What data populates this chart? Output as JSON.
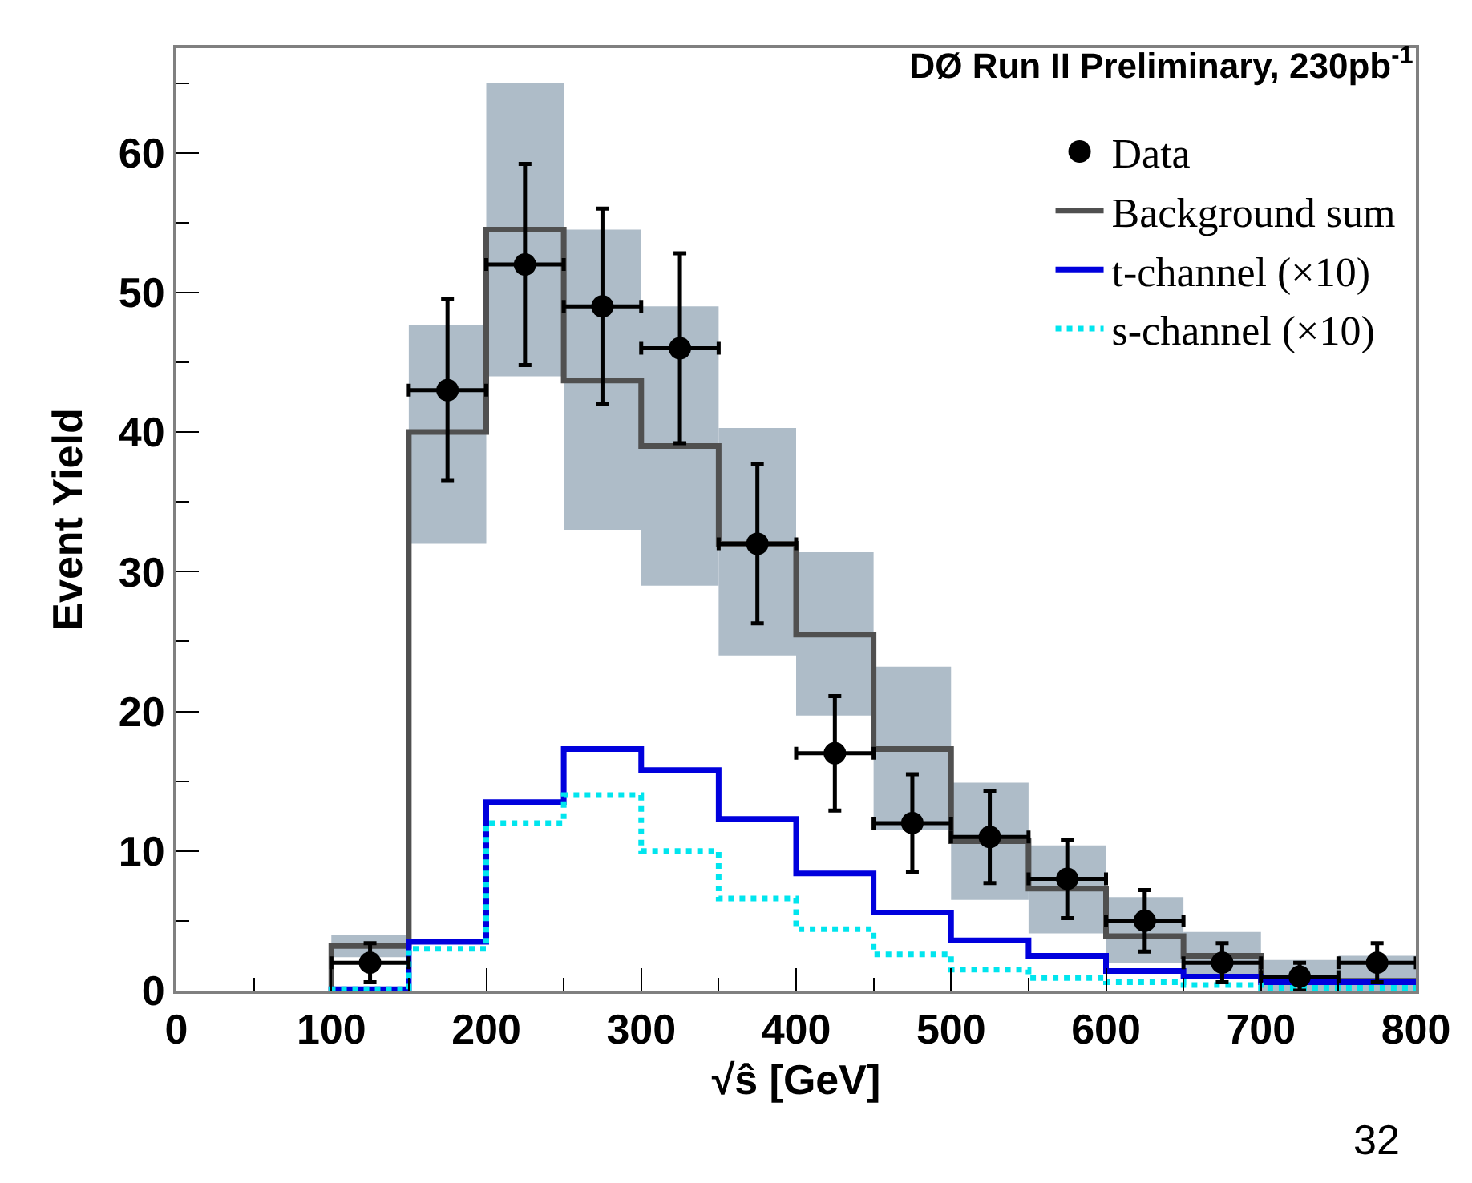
{
  "chart_data": {
    "type": "histogram",
    "title": "DØ Run II Preliminary, 230pb$^{-1}$",
    "xlabel": "√ŝ [GeV]",
    "ylabel": "Event Yield",
    "bins": [
      100,
      150,
      200,
      250,
      300,
      350,
      400,
      450,
      500,
      550,
      600,
      650,
      700,
      750,
      800
    ],
    "series": [
      {
        "name": "Data",
        "type": "scatter",
        "color": "#000000",
        "marker": "circle",
        "x": [
          125,
          175,
          225,
          275,
          325,
          375,
          425,
          475,
          525,
          575,
          625,
          675,
          725,
          775
        ],
        "values": [
          2,
          43,
          52,
          49,
          46,
          32,
          17,
          12,
          11,
          8,
          5,
          2,
          1,
          2
        ],
        "errors": [
          1.4,
          6.5,
          7.2,
          7,
          6.8,
          5.7,
          4.1,
          3.5,
          3.3,
          2.8,
          2.2,
          1.4,
          1,
          1.4
        ],
        "xerrors": [
          25,
          25,
          25,
          25,
          25,
          25,
          25,
          25,
          25,
          25,
          25,
          25,
          25,
          25
        ]
      },
      {
        "type": "bar",
        "color": "#aebcc8",
        "x": [
          125,
          175,
          225,
          275,
          325,
          375,
          425,
          475,
          525,
          575,
          625,
          675,
          725,
          775
        ],
        "base": [
          2.4,
          32,
          44,
          33,
          29,
          24,
          19.7,
          11.5,
          6.5,
          4.1,
          2.0,
          0.8,
          0,
          0
        ],
        "values": [
          1.6,
          15.7,
          21,
          21.5,
          20,
          16.3,
          11.7,
          11.7,
          8.4,
          6.3,
          4.7,
          3.4,
          2.2,
          2.5
        ]
      },
      {
        "name": "Background sum",
        "color": "#505050",
        "values": [
          3.2,
          40,
          54.5,
          43.7,
          39,
          32,
          25.5,
          17.3,
          10.7,
          7.3,
          3.9,
          2.5,
          0.7,
          0.7
        ]
      },
      {
        "name": "t-channel (×10)",
        "color": "#0000dd",
        "line_style": "solid",
        "values": [
          0.1,
          3.5,
          13.5,
          17.3,
          15.8,
          12.3,
          8.4,
          5.6,
          3.6,
          2.5,
          1.4,
          1.0,
          0.6,
          0.6
        ]
      },
      {
        "name": "s-channel (×10)",
        "color": "#00e5ee",
        "line_style": "dotted",
        "values": [
          0.1,
          3.0,
          12.0,
          14.0,
          10.0,
          6.6,
          4.4,
          2.6,
          1.5,
          0.9,
          0.6,
          0.4,
          0.2,
          0.2
        ]
      }
    ],
    "xlim": [
      0,
      800
    ],
    "xticks": [
      0,
      100,
      200,
      300,
      400,
      500,
      600,
      700,
      800
    ],
    "ylim": [
      0,
      67.5
    ],
    "yticks": [
      0,
      10,
      20,
      30,
      40,
      50,
      60
    ],
    "legend": "top right",
    "annotations": [
      "32"
    ]
  }
}
